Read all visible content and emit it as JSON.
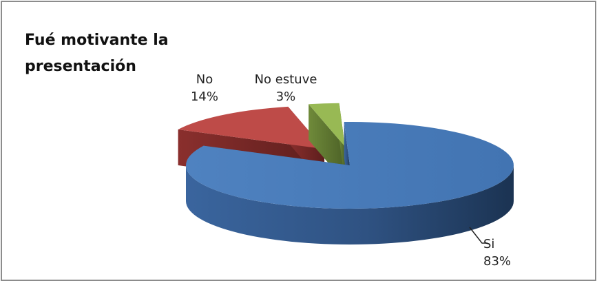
{
  "chart_data": {
    "type": "pie",
    "title": "Fué motivante la presentación",
    "categories": [
      "Si",
      "No",
      "No estuve"
    ],
    "values": [
      83,
      14,
      3
    ],
    "value_labels": [
      "83%",
      "14%",
      "3%"
    ],
    "colors": [
      "#4a7ebb",
      "#be4b48",
      "#98b954"
    ],
    "style": "3d-exploded",
    "legend": "none"
  }
}
